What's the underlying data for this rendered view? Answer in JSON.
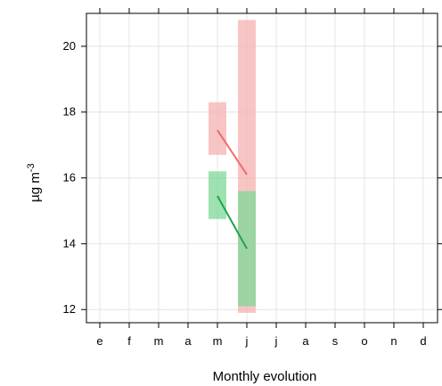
{
  "chart_data": {
    "type": "line",
    "xlabel": "Monthly evolution",
    "ylabel_main": "µg m",
    "ylabel_sup": "-3",
    "categories": [
      "e",
      "f",
      "m",
      "a",
      "m",
      "j",
      "j",
      "a",
      "s",
      "o",
      "n",
      "d"
    ],
    "ylim": [
      11.6,
      21.0
    ],
    "yticks": [
      12,
      14,
      16,
      18,
      20
    ],
    "grid": true,
    "series": [
      {
        "color": "#ee6a6a",
        "band_color": "#f6b2b2",
        "points": [
          {
            "x_index": 4,
            "value": 17.45,
            "low": 16.7,
            "high": 18.3
          },
          {
            "x_index": 5,
            "value": 16.1,
            "low": 11.9,
            "high": 20.8
          }
        ]
      },
      {
        "color": "#1fa34a",
        "band_color": "#7fd897",
        "points": [
          {
            "x_index": 4,
            "value": 15.45,
            "low": 14.75,
            "high": 16.2
          },
          {
            "x_index": 5,
            "value": 13.85,
            "low": 12.1,
            "high": 15.6
          }
        ]
      }
    ]
  }
}
